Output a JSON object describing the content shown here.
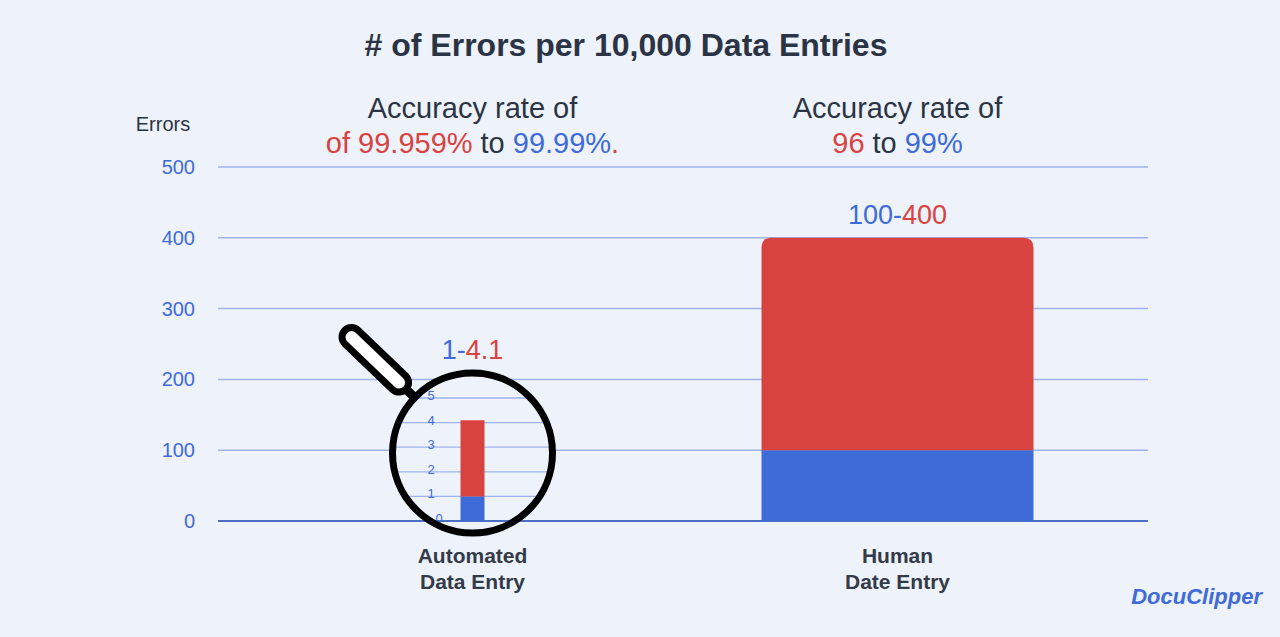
{
  "chart_data": {
    "type": "bar",
    "title": "# of Errors per 10,000 Data Entries",
    "y_label": "Errors",
    "categories": [
      "Automated Data Entry",
      "Human Date Entry"
    ],
    "series": [
      {
        "color": "#3e6bd8",
        "values": [
          1,
          100
        ]
      },
      {
        "color": "#d84340",
        "values": [
          3.1,
          300
        ]
      }
    ],
    "stacked": true,
    "ylim": [
      0,
      500
    ],
    "yticks": [
      0,
      100,
      200,
      300,
      400,
      500
    ],
    "grid": true,
    "zoom": {
      "ylim": [
        0,
        5
      ],
      "yticks": [
        0,
        1,
        2,
        3,
        4,
        5
      ]
    },
    "range_labels": [
      [
        "1",
        "-",
        "4.1"
      ],
      [
        "100",
        "-",
        "400"
      ]
    ],
    "annotations": [
      {
        "heading": "Accuracy rate of",
        "from": "of 99.959%",
        "joiner": "to",
        "to": "99.99%",
        "end": "."
      },
      {
        "heading": "Accuracy rate of",
        "from": "96",
        "joiner": "to",
        "to": "99%"
      }
    ],
    "brand": "DocuClipper"
  }
}
